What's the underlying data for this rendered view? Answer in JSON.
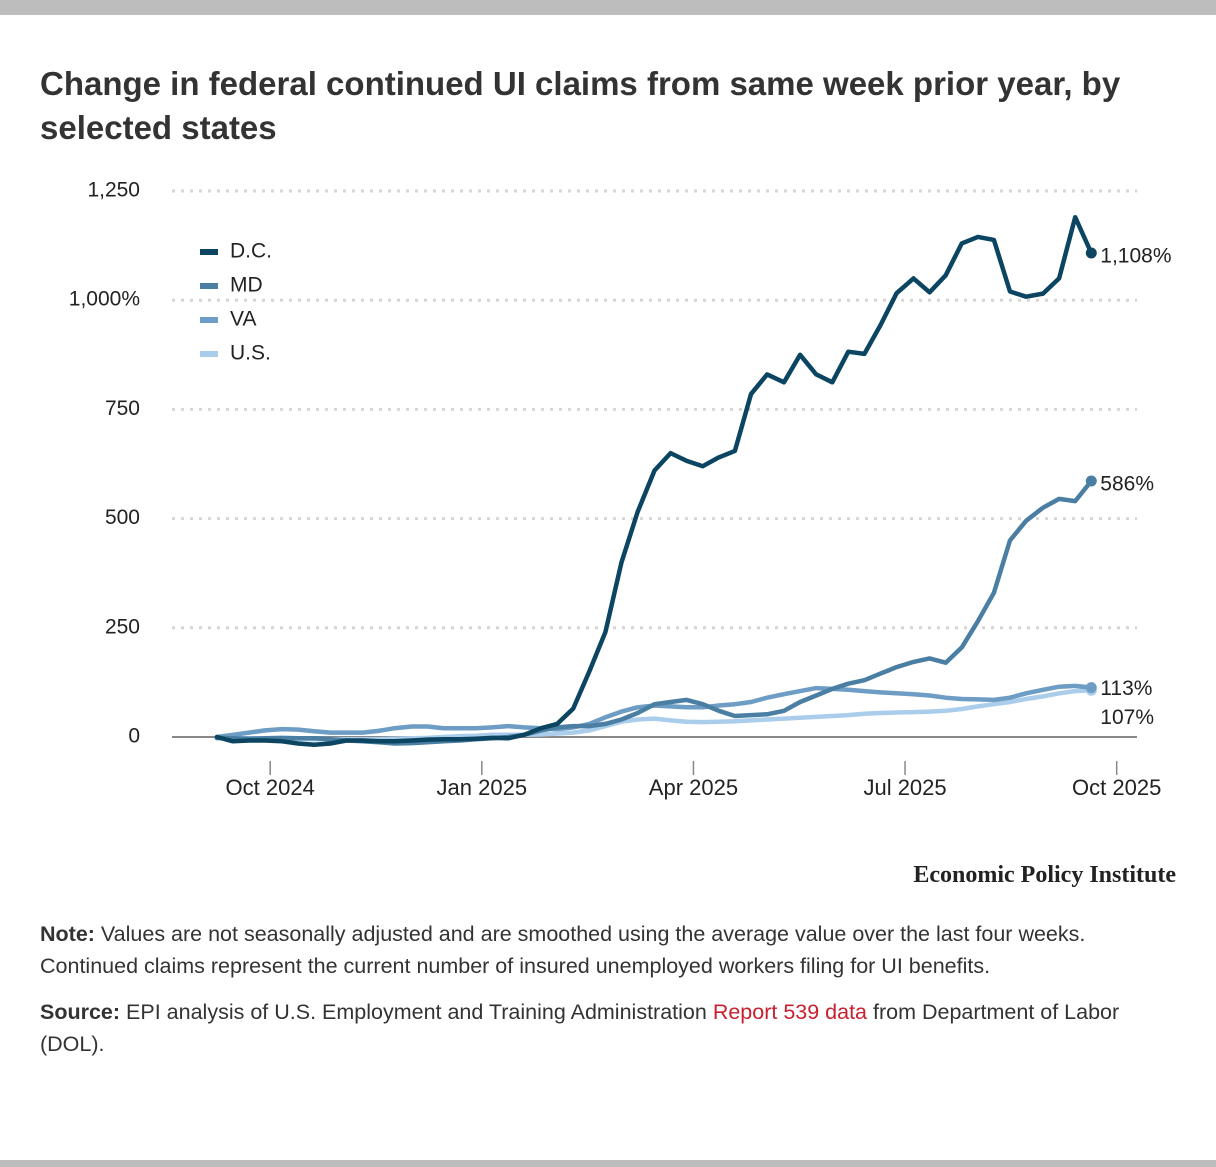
{
  "chart_data": {
    "type": "line",
    "title": "Change in federal continued UI claims from same week prior year, by selected states",
    "x": [
      2024.687,
      2024.706,
      2024.725,
      2024.744,
      2024.764,
      2024.783,
      2024.802,
      2024.821,
      2024.84,
      2024.859,
      2024.878,
      2024.897,
      2024.917,
      2024.936,
      2024.955,
      2024.974,
      2024.993,
      2025.012,
      2025.031,
      2025.05,
      2025.07,
      2025.089,
      2025.108,
      2025.127,
      2025.146,
      2025.165,
      2025.184,
      2025.204,
      2025.223,
      2025.242,
      2025.261,
      2025.28,
      2025.299,
      2025.318,
      2025.337,
      2025.357,
      2025.376,
      2025.395,
      2025.414,
      2025.433,
      2025.452,
      2025.471,
      2025.49,
      2025.51,
      2025.529,
      2025.548,
      2025.567,
      2025.586,
      2025.605,
      2025.624,
      2025.643,
      2025.663,
      2025.682,
      2025.701,
      2025.72
    ],
    "series": [
      {
        "name": "D.C.",
        "color": "#0b4561",
        "values": [
          0,
          -10,
          -8,
          -8,
          -10,
          -15,
          -18,
          -15,
          -8,
          -8,
          -10,
          -10,
          -8,
          -6,
          -5,
          -5,
          -4,
          -2,
          -3,
          5,
          20,
          30,
          65,
          150,
          240,
          400,
          515,
          610,
          650,
          632,
          620,
          640,
          655,
          785,
          830,
          812,
          875,
          830,
          812,
          882,
          877,
          943,
          1016,
          1050,
          1018,
          1057,
          1130,
          1145,
          1138,
          1020,
          1008,
          1015,
          1050,
          1190,
          1108
        ],
        "value_labels": [
          null,
          null,
          null,
          null,
          null,
          null,
          null,
          null,
          null,
          null,
          null,
          null,
          null,
          null,
          null,
          null,
          null,
          null,
          null,
          null,
          null,
          null,
          null,
          null,
          null,
          null,
          null,
          null,
          null,
          null,
          null,
          null,
          null,
          null,
          null,
          null,
          null,
          null,
          null,
          null,
          null,
          null,
          null,
          null,
          null,
          null,
          null,
          null,
          null,
          null,
          null,
          null,
          null,
          null,
          "1,108%"
        ]
      },
      {
        "name": "MD",
        "color": "#4a7fa3",
        "values": [
          -2,
          -3,
          -4,
          -3,
          -2,
          -3,
          -3,
          -5,
          -8,
          -10,
          -12,
          -15,
          -14,
          -12,
          -10,
          -8,
          -5,
          -3,
          0,
          5,
          15,
          22,
          25,
          25,
          30,
          40,
          55,
          75,
          80,
          85,
          75,
          60,
          48,
          50,
          52,
          60,
          80,
          95,
          110,
          122,
          130,
          145,
          160,
          172,
          180,
          170,
          205,
          265,
          330,
          450,
          495,
          525,
          545,
          540,
          586
        ],
        "value_labels": [
          null,
          null,
          null,
          null,
          null,
          null,
          null,
          null,
          null,
          null,
          null,
          null,
          null,
          null,
          null,
          null,
          null,
          null,
          null,
          null,
          null,
          null,
          null,
          null,
          null,
          null,
          null,
          null,
          null,
          null,
          null,
          null,
          null,
          null,
          null,
          null,
          null,
          null,
          null,
          null,
          null,
          null,
          null,
          null,
          null,
          null,
          null,
          null,
          null,
          null,
          null,
          null,
          null,
          null,
          "586%"
        ]
      },
      {
        "name": "VA",
        "color": "#6d9cc4",
        "values": [
          0,
          5,
          10,
          15,
          18,
          17,
          13,
          10,
          10,
          10,
          14,
          20,
          24,
          24,
          20,
          20,
          20,
          22,
          25,
          22,
          20,
          18,
          22,
          30,
          45,
          58,
          68,
          72,
          70,
          68,
          68,
          72,
          75,
          80,
          90,
          98,
          105,
          112,
          110,
          108,
          105,
          102,
          100,
          98,
          95,
          90,
          87,
          86,
          85,
          90,
          100,
          108,
          115,
          117,
          113
        ],
        "value_labels": [
          null,
          null,
          null,
          null,
          null,
          null,
          null,
          null,
          null,
          null,
          null,
          null,
          null,
          null,
          null,
          null,
          null,
          null,
          null,
          null,
          null,
          null,
          null,
          null,
          null,
          null,
          null,
          null,
          null,
          null,
          null,
          null,
          null,
          null,
          null,
          null,
          null,
          null,
          null,
          null,
          null,
          null,
          null,
          null,
          null,
          null,
          null,
          null,
          null,
          null,
          null,
          null,
          null,
          null,
          "113%"
        ]
      },
      {
        "name": "U.S.",
        "color": "#a9cdeb",
        "values": [
          -3,
          -3,
          -3,
          -3,
          -3,
          -4,
          -5,
          -5,
          -5,
          -5,
          -5,
          -4,
          -3,
          -2,
          0,
          2,
          3,
          5,
          5,
          5,
          6,
          8,
          10,
          15,
          25,
          35,
          40,
          42,
          38,
          35,
          34,
          35,
          36,
          38,
          40,
          42,
          44,
          46,
          48,
          50,
          53,
          55,
          56,
          57,
          58,
          60,
          64,
          70,
          75,
          80,
          87,
          93,
          100,
          105,
          107
        ],
        "value_labels": [
          null,
          null,
          null,
          null,
          null,
          null,
          null,
          null,
          null,
          null,
          null,
          null,
          null,
          null,
          null,
          null,
          null,
          null,
          null,
          null,
          null,
          null,
          null,
          null,
          null,
          null,
          null,
          null,
          null,
          null,
          null,
          null,
          null,
          null,
          null,
          null,
          null,
          null,
          null,
          null,
          null,
          null,
          null,
          null,
          null,
          null,
          null,
          null,
          null,
          null,
          null,
          null,
          null,
          null,
          "107%"
        ]
      }
    ],
    "xlim": [
      2024.634,
      2025.774
    ],
    "xticks": [
      {
        "value": 2024.75,
        "label": "Oct 2024"
      },
      {
        "value": 2025.0,
        "label": "Jan 2025"
      },
      {
        "value": 2025.25,
        "label": "Apr 2025"
      },
      {
        "value": 2025.5,
        "label": "Jul 2025"
      },
      {
        "value": 2025.75,
        "label": "Oct 2025"
      }
    ],
    "ylim": [
      -55,
      1250
    ],
    "yticks": [
      0,
      250,
      500,
      750,
      {
        "value": 1000,
        "label": "1,000%"
      },
      {
        "value": 1250,
        "label": "1,250"
      }
    ],
    "grid": true,
    "legend": "upper left"
  },
  "brand": "Economic Policy Institute",
  "notes": {
    "note_label": "Note:",
    "note_text": "Values are not seasonally adjusted and are smoothed using the average value over the last four weeks. Continued claims represent the current number of insured unemployed workers filing for UI benefits.",
    "source_label": "Source:",
    "source_text": "EPI analysis of U.S. Employment and Training Administration",
    "source_link": "Report 539 data",
    "source_text_end": "from Department of Labor (DOL)."
  }
}
